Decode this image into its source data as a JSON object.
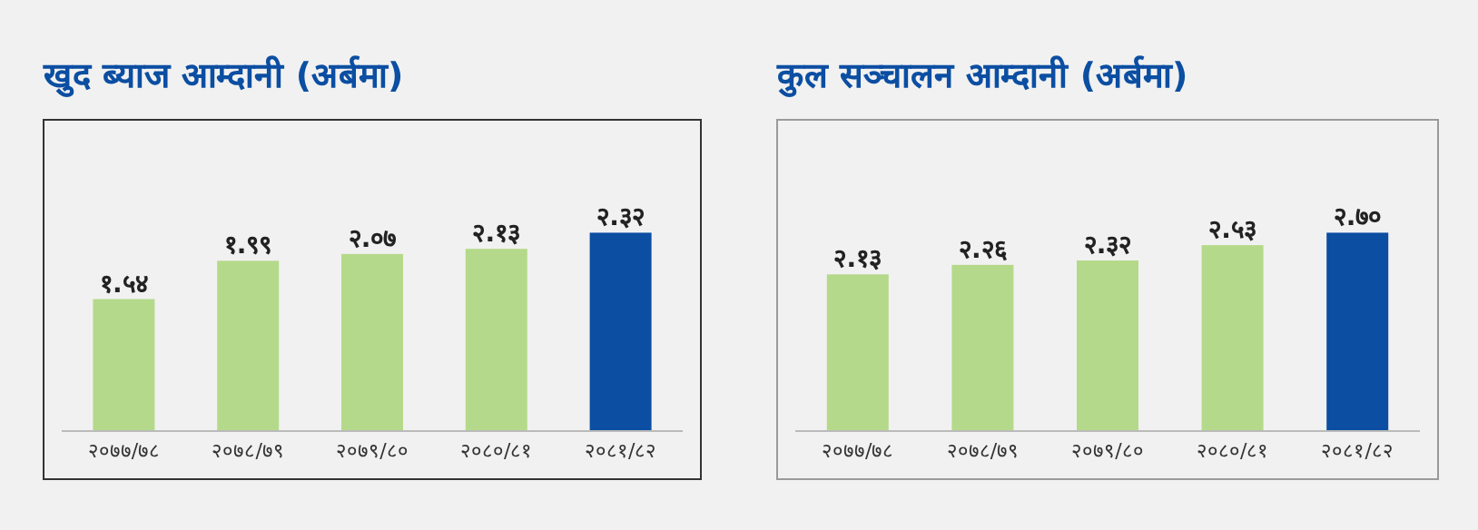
{
  "chart_data": [
    {
      "type": "bar",
      "title": "खुद ब्याज आम्दानी (अर्बमा)",
      "categories": [
        "२०७७/७८",
        "२०७८/७९",
        "२०७९/८०",
        "२०८०/८१",
        "२०८१/८२"
      ],
      "values": [
        1.54,
        1.99,
        2.07,
        2.13,
        2.32
      ],
      "value_labels": [
        "१.५४",
        "१.९९",
        "२.०७",
        "२.१३",
        "२.३२"
      ],
      "colors": [
        "#b5d98a",
        "#b5d98a",
        "#b5d98a",
        "#b5d98a",
        "#0b4ea2"
      ],
      "tick_labels": "x"
    },
    {
      "type": "bar",
      "title": "कुल सञ्चालन आम्दानी (अर्बमा)",
      "categories": [
        "२०७७/७८",
        "२०७८/७९",
        "२०७९/८०",
        "२०८०/८१",
        "२०८१/८२"
      ],
      "values": [
        2.13,
        2.26,
        2.32,
        2.53,
        2.7
      ],
      "value_labels": [
        "२.१३",
        "२.२६",
        "२.३२",
        "२.५३",
        "२.७०"
      ],
      "colors": [
        "#b5d98a",
        "#b5d98a",
        "#b5d98a",
        "#b5d98a",
        "#0b4ea2"
      ],
      "tick_labels": "x"
    }
  ]
}
